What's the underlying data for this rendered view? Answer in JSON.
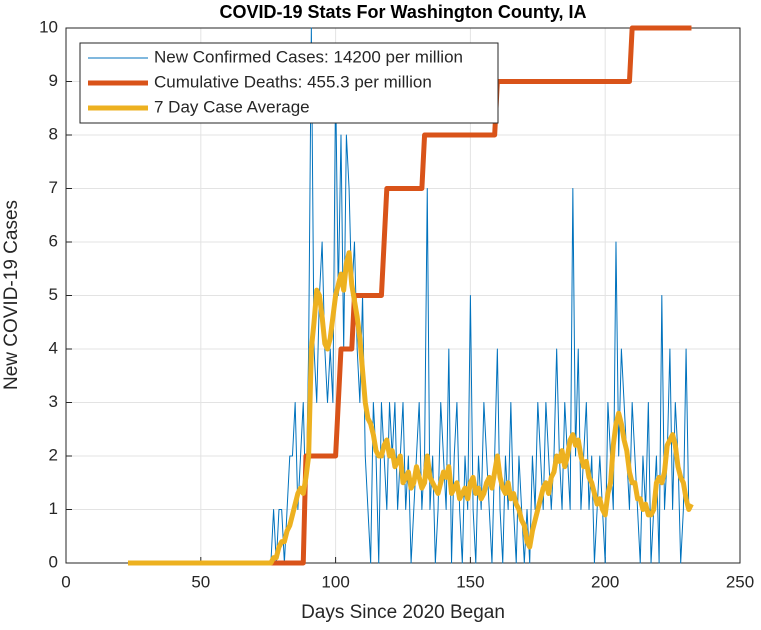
{
  "chart_data": {
    "type": "line",
    "title": "COVID-19 Stats For Washington County, IA",
    "xlabel": "Days Since 2020 Began",
    "ylabel": "New COVID-19 Cases",
    "x": [
      23,
      24,
      25,
      26,
      27,
      28,
      29,
      30,
      31,
      32,
      33,
      34,
      35,
      36,
      37,
      38,
      39,
      40,
      41,
      42,
      43,
      44,
      45,
      46,
      47,
      48,
      49,
      50,
      51,
      52,
      53,
      54,
      55,
      56,
      57,
      58,
      59,
      60,
      61,
      62,
      63,
      64,
      65,
      66,
      67,
      68,
      69,
      70,
      71,
      72,
      73,
      74,
      75,
      76,
      77,
      78,
      79,
      80,
      81,
      82,
      83,
      84,
      85,
      86,
      87,
      88,
      89,
      90,
      91,
      92,
      93,
      94,
      95,
      96,
      97,
      98,
      99,
      100,
      101,
      102,
      103,
      104,
      105,
      106,
      107,
      108,
      109,
      110,
      111,
      112,
      113,
      114,
      115,
      116,
      117,
      118,
      119,
      120,
      121,
      122,
      123,
      124,
      125,
      126,
      127,
      128,
      129,
      130,
      131,
      132,
      133,
      134,
      135,
      136,
      137,
      138,
      139,
      140,
      141,
      142,
      143,
      144,
      145,
      146,
      147,
      148,
      149,
      150,
      151,
      152,
      153,
      154,
      155,
      156,
      157,
      158,
      159,
      160,
      161,
      162,
      163,
      164,
      165,
      166,
      167,
      168,
      169,
      170,
      171,
      172,
      173,
      174,
      175,
      176,
      177,
      178,
      179,
      180,
      181,
      182,
      183,
      184,
      185,
      186,
      187,
      188,
      189,
      190,
      191,
      192,
      193,
      194,
      195,
      196,
      197,
      198,
      199,
      200,
      201,
      202,
      203,
      204,
      205,
      206,
      207,
      208,
      209,
      210,
      211,
      212,
      213,
      214,
      215,
      216,
      217,
      218,
      219,
      220,
      221,
      222,
      223,
      224,
      225,
      226,
      227,
      228,
      229,
      230,
      231,
      232
    ],
    "series": [
      {
        "name": "New Confirmed Cases: 14200 per million",
        "color": "#0072bd",
        "width": 1,
        "values": [
          0,
          0,
          0,
          0,
          0,
          0,
          0,
          0,
          0,
          0,
          0,
          0,
          0,
          0,
          0,
          0,
          0,
          0,
          0,
          0,
          0,
          0,
          0,
          0,
          0,
          0,
          0,
          0,
          0,
          0,
          0,
          0,
          0,
          0,
          0,
          0,
          0,
          0,
          0,
          0,
          0,
          0,
          0,
          0,
          0,
          0,
          0,
          0,
          0,
          0,
          0,
          0,
          0,
          0,
          1,
          0,
          1,
          1,
          0,
          1,
          2,
          2,
          3,
          1,
          2,
          3,
          1,
          4,
          10,
          4,
          3,
          5,
          6,
          4,
          3,
          4,
          3,
          9,
          5,
          8,
          4,
          8,
          7,
          5,
          6,
          4,
          3,
          5,
          2,
          1,
          0,
          3,
          2,
          0,
          3,
          2,
          1,
          3,
          2,
          3,
          1,
          2,
          3,
          1,
          2,
          0,
          1,
          2,
          3,
          1,
          2,
          7,
          1,
          2,
          0,
          1,
          3,
          2,
          1,
          4,
          0,
          2,
          3,
          1,
          0,
          2,
          1,
          5,
          1,
          0,
          2,
          1,
          3,
          2,
          1,
          0,
          2,
          4,
          1,
          0,
          2,
          1,
          3,
          1,
          0,
          2,
          1,
          0,
          1,
          0,
          2,
          1,
          3,
          2,
          1,
          3,
          2,
          1,
          2,
          4,
          2,
          1,
          3,
          2,
          1,
          7,
          2,
          4,
          1,
          2,
          3,
          1,
          2,
          0,
          1,
          2,
          1,
          0,
          3,
          2,
          1,
          6,
          2,
          4,
          3,
          2,
          1,
          3,
          2,
          1,
          0,
          2,
          1,
          3,
          0,
          1,
          2,
          0,
          5,
          1,
          2,
          4,
          1,
          3,
          2,
          0,
          1,
          4,
          1,
          1
        ]
      },
      {
        "name": "Cumulative Deaths: 455.3 per million",
        "color": "#d95319",
        "width": 5,
        "values": [
          0,
          0,
          0,
          0,
          0,
          0,
          0,
          0,
          0,
          0,
          0,
          0,
          0,
          0,
          0,
          0,
          0,
          0,
          0,
          0,
          0,
          0,
          0,
          0,
          0,
          0,
          0,
          0,
          0,
          0,
          0,
          0,
          0,
          0,
          0,
          0,
          0,
          0,
          0,
          0,
          0,
          0,
          0,
          0,
          0,
          0,
          0,
          0,
          0,
          0,
          0,
          0,
          0,
          0,
          0,
          0,
          0,
          0,
          0,
          0,
          0,
          0,
          0,
          0,
          0,
          0,
          2,
          2,
          2,
          2,
          2,
          2,
          2,
          2,
          2,
          2,
          2,
          2,
          3,
          4,
          4,
          4,
          4,
          4,
          5,
          5,
          5,
          5,
          5,
          5,
          5,
          5,
          5,
          5,
          5,
          6,
          7,
          7,
          7,
          7,
          7,
          7,
          7,
          7,
          7,
          7,
          7,
          7,
          7,
          7,
          8,
          8,
          8,
          8,
          8,
          8,
          8,
          8,
          8,
          8,
          8,
          8,
          8,
          8,
          8,
          8,
          8,
          8,
          8,
          8,
          8,
          8,
          8,
          8,
          8,
          8,
          8,
          9,
          9,
          9,
          9,
          9,
          9,
          9,
          9,
          9,
          9,
          9,
          9,
          9,
          9,
          9,
          9,
          9,
          9,
          9,
          9,
          9,
          9,
          9,
          9,
          9,
          9,
          9,
          9,
          9,
          9,
          9,
          9,
          9,
          9,
          9,
          9,
          9,
          9,
          9,
          9,
          9,
          9,
          9,
          9,
          9,
          9,
          9,
          9,
          9,
          9,
          10,
          10,
          10,
          10,
          10,
          10,
          10,
          10,
          10,
          10,
          10,
          10,
          10,
          10,
          10,
          10,
          10,
          10,
          10,
          10,
          10,
          10,
          10
        ]
      },
      {
        "name": "7 Day Case Average",
        "color": "#edb120",
        "width": 5,
        "values": [
          0,
          0,
          0,
          0,
          0,
          0,
          0,
          0,
          0,
          0,
          0,
          0,
          0,
          0,
          0,
          0,
          0,
          0,
          0,
          0,
          0,
          0,
          0,
          0,
          0,
          0,
          0,
          0,
          0,
          0,
          0,
          0,
          0,
          0,
          0,
          0,
          0,
          0,
          0,
          0,
          0,
          0,
          0,
          0,
          0,
          0,
          0,
          0,
          0,
          0,
          0,
          0,
          0,
          0,
          0.1,
          0.1,
          0.3,
          0.4,
          0.4,
          0.6,
          0.7,
          0.9,
          1.1,
          1.3,
          1.4,
          1.3,
          1.6,
          2,
          4,
          4.5,
          5.1,
          5,
          4.6,
          4.1,
          4,
          4.2,
          4.6,
          5,
          5.2,
          5.4,
          5.1,
          5.6,
          5.8,
          5.2,
          4.9,
          4.6,
          4.2,
          3.6,
          3,
          2.7,
          2.6,
          2.4,
          2.1,
          2,
          2,
          2.2,
          2.3,
          2,
          2.1,
          1.8,
          1.9,
          2,
          1.5,
          1.6,
          1.7,
          1.4,
          1.5,
          1.8,
          1.6,
          1.4,
          1.5,
          2,
          1.6,
          1.5,
          1.4,
          1.3,
          1.5,
          1.7,
          1.6,
          1.8,
          1.3,
          1.4,
          1.5,
          1.2,
          1.3,
          1.4,
          1.2,
          1.5,
          1.6,
          1.3,
          1.4,
          1.2,
          1.3,
          1.5,
          1.6,
          1.4,
          1.7,
          2,
          1.6,
          1.4,
          1.3,
          1.5,
          1.2,
          1.3,
          1.1,
          1,
          0.8,
          0.7,
          0.4,
          0.3,
          0.6,
          0.8,
          1,
          1.2,
          1.4,
          1.5,
          1.3,
          1.6,
          1.7,
          2,
          1.9,
          2.1,
          1.8,
          2,
          2.3,
          2.4,
          2.2,
          2.3,
          2,
          1.8,
          1.9,
          1.6,
          1.5,
          1.3,
          1.1,
          1.2,
          1,
          0.9,
          1.3,
          1.5,
          2.2,
          2.6,
          2.8,
          2.6,
          2.3,
          2.1,
          1.7,
          1.5,
          1.5,
          1.2,
          1.2,
          1,
          1.1,
          0.9,
          0.9,
          1,
          1.5,
          1.6,
          1.5,
          1.7,
          2.2,
          2.3,
          2.4,
          2.2,
          1.8,
          1.6,
          1.5,
          1.2,
          1,
          1.1
        ]
      }
    ],
    "xlim": [
      0,
      250
    ],
    "xticks": [
      0,
      50,
      100,
      150,
      200,
      250
    ],
    "ylim": [
      0,
      10
    ],
    "yticks": [
      0,
      1,
      2,
      3,
      4,
      5,
      6,
      7,
      8,
      9,
      10
    ],
    "grid": true,
    "legend": "upper-left"
  }
}
